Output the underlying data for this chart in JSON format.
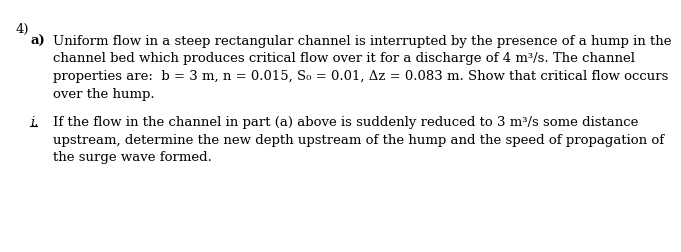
{
  "number": "4)",
  "part_a_label": "a)",
  "part_a_line1": "Uniform flow in a steep rectangular channel is interrupted by the presence of a hump in the",
  "part_a_line2": "channel bed which produces critical flow over it for a discharge of 4 m³/s. The channel",
  "part_a_line3": "properties are:  b = 3 m, n = 0.015, S₀ = 0.01, Δz = 0.083 m. Show that critical flow occurs",
  "part_a_line4": "over the hump.",
  "part_i_label": "i.",
  "part_i_line1": "If the flow in the channel in part (a) above is suddenly reduced to 3 m³/s some distance",
  "part_i_line2": "upstream, determine the new depth upstream of the hump and the speed of propagation of",
  "part_i_line3": "the surge wave formed.",
  "bg_color": "#ffffff",
  "text_color": "#000000",
  "font_size": 9.5,
  "label_font_size": 9.5
}
